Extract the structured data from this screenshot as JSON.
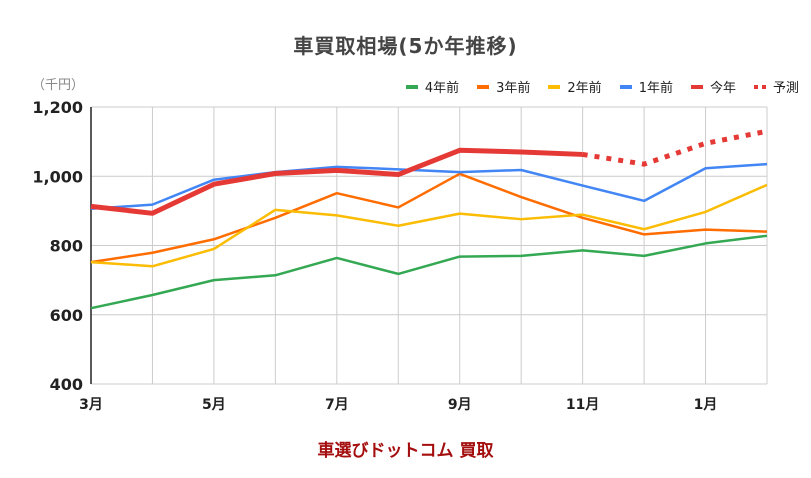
{
  "chart_data": {
    "type": "line",
    "title": "車買取相場(5か年推移)",
    "unit_label": "（千円）",
    "x": [
      "3月",
      "4月",
      "5月",
      "6月",
      "7月",
      "8月",
      "9月",
      "10月",
      "11月",
      "12月",
      "1月",
      "2月"
    ],
    "x_tick_labels": [
      "3月",
      "5月",
      "7月",
      "9月",
      "11月",
      "1月"
    ],
    "y_ticks": [
      "1,200",
      "1,000",
      "800",
      "600",
      "400"
    ],
    "y_tick_values": [
      1200,
      1000,
      800,
      600,
      400
    ],
    "ylim": [
      400,
      1200
    ],
    "grid": true,
    "legend_position": "top-right",
    "series": [
      {
        "name": "4年前",
        "color": "#34a853",
        "style": "solid",
        "values": [
          619,
          657,
          700,
          714,
          764,
          718,
          768,
          770,
          786,
          770,
          806,
          828
        ]
      },
      {
        "name": "3年前",
        "color": "#ff6d01",
        "style": "solid",
        "values": [
          752,
          779,
          818,
          880,
          951,
          910,
          1007,
          940,
          880,
          832,
          846,
          840
        ]
      },
      {
        "name": "2年前",
        "color": "#fbbc04",
        "style": "solid",
        "values": [
          752,
          740,
          790,
          903,
          887,
          857,
          892,
          876,
          889,
          847,
          897,
          975
        ]
      },
      {
        "name": "1年前",
        "color": "#4285f4",
        "style": "solid",
        "values": [
          906,
          918,
          990,
          1012,
          1027,
          1020,
          1012,
          1018,
          973,
          929,
          1023,
          1035
        ]
      },
      {
        "name": "今年",
        "color": "#e53935",
        "style": "thick",
        "values": [
          913,
          893,
          977,
          1008,
          1017,
          1005,
          1075,
          1070,
          1063,
          null,
          null,
          null
        ]
      },
      {
        "name": "予測",
        "color": "#e53935",
        "style": "dotted",
        "values": [
          null,
          null,
          null,
          null,
          null,
          null,
          null,
          null,
          1063,
          1035,
          1095,
          1130
        ]
      }
    ]
  },
  "credit": "車選びドットコム 買取"
}
